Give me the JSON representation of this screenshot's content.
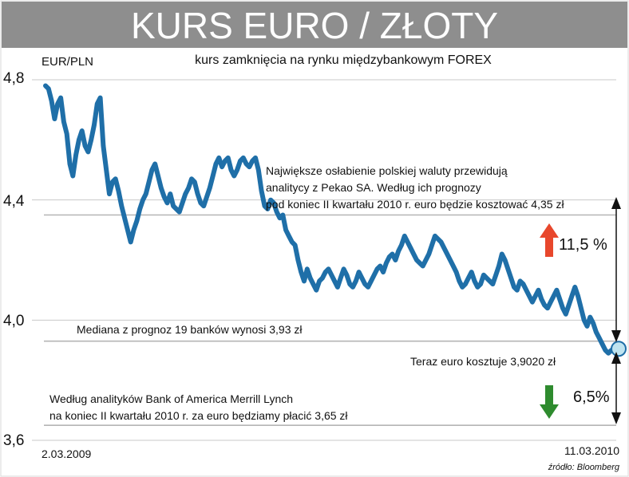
{
  "header": {
    "title": "KURS EURO / ZŁOTY",
    "subtitle": "kurs zamknięcia na rynku międzybankowym FOREX"
  },
  "chart_data": {
    "type": "line",
    "ylabel": "EUR/PLN",
    "ylim": [
      3.6,
      4.8
    ],
    "y_ticks": [
      "4,8",
      "4,4",
      "4,0",
      "3,6"
    ],
    "x_start_label": "2.03.2009",
    "x_end_label": "11.03.2010",
    "source": "źródło: Bloomberg",
    "series": [
      {
        "color": "#1f6fa8",
        "values": [
          4.78,
          4.77,
          4.73,
          4.67,
          4.72,
          4.74,
          4.66,
          4.62,
          4.52,
          4.48,
          4.55,
          4.6,
          4.63,
          4.58,
          4.56,
          4.6,
          4.65,
          4.72,
          4.74,
          4.58,
          4.5,
          4.42,
          4.46,
          4.47,
          4.43,
          4.38,
          4.34,
          4.3,
          4.26,
          4.3,
          4.33,
          4.37,
          4.4,
          4.42,
          4.46,
          4.5,
          4.52,
          4.48,
          4.44,
          4.41,
          4.39,
          4.42,
          4.38,
          4.37,
          4.36,
          4.39,
          4.42,
          4.44,
          4.47,
          4.46,
          4.42,
          4.39,
          4.38,
          4.41,
          4.44,
          4.48,
          4.52,
          4.54,
          4.51,
          4.53,
          4.54,
          4.5,
          4.48,
          4.5,
          4.53,
          4.54,
          4.52,
          4.51,
          4.53,
          4.54,
          4.5,
          4.43,
          4.38,
          4.37,
          4.4,
          4.39,
          4.36,
          4.34,
          4.35,
          4.3,
          4.28,
          4.26,
          4.25,
          4.2,
          4.16,
          4.13,
          4.17,
          4.14,
          4.12,
          4.1,
          4.13,
          4.14,
          4.16,
          4.17,
          4.15,
          4.13,
          4.11,
          4.14,
          4.17,
          4.15,
          4.12,
          4.11,
          4.13,
          4.16,
          4.14,
          4.12,
          4.11,
          4.13,
          4.15,
          4.17,
          4.18,
          4.16,
          4.19,
          4.21,
          4.22,
          4.2,
          4.23,
          4.25,
          4.28,
          4.26,
          4.24,
          4.22,
          4.2,
          4.19,
          4.18,
          4.2,
          4.22,
          4.25,
          4.28,
          4.27,
          4.26,
          4.24,
          4.22,
          4.2,
          4.18,
          4.16,
          4.13,
          4.11,
          4.12,
          4.14,
          4.16,
          4.13,
          4.11,
          4.12,
          4.15,
          4.14,
          4.13,
          4.12,
          4.15,
          4.18,
          4.22,
          4.2,
          4.17,
          4.14,
          4.11,
          4.1,
          4.13,
          4.12,
          4.1,
          4.08,
          4.06,
          4.08,
          4.1,
          4.07,
          4.05,
          4.04,
          4.06,
          4.08,
          4.1,
          4.07,
          4.04,
          4.02,
          4.05,
          4.08,
          4.11,
          4.08,
          4.04,
          4.0,
          3.98,
          4.01,
          3.99,
          3.96,
          3.94,
          3.92,
          3.9,
          3.89,
          3.9
        ]
      }
    ],
    "reference_lines": [
      {
        "value": 4.35,
        "label": "Największe osłabienie polskiej waluty przewidują analitycy z Pekao SA. Według ich prognozy pod koniec II kwartału 2010 r. euro będzie kosztować 4,35 zł"
      },
      {
        "value": 3.93,
        "label": "Mediana z prognoz 19 banków wynosi 3,93 zł"
      },
      {
        "value": 3.65,
        "label": "Według analityków Bank of America Merrill Lynch na koniec II kwartału 2010 r. za euro będziamy płacić 3,65 zł"
      }
    ],
    "current": {
      "value": 3.902,
      "label": "Teraz euro kosztuje 3,9020 zł"
    },
    "changes": {
      "up": "11,5 %",
      "down": "6,5%"
    },
    "colors": {
      "title_bg": "#8e8e8e",
      "line": "#1f6fa8",
      "grid": "#b5b5b5",
      "up_arrow": "#e8472c",
      "down_arrow": "#2e8b2e"
    }
  },
  "annotations": {
    "pekao_line1": "Największe osłabienie polskiej waluty przewidują",
    "pekao_line2": "analitycy z Pekao SA. Według ich prognozy",
    "pekao_line3": "pod koniec II kwartału 2010 r. euro będzie kosztować 4,35 zł",
    "median": "Mediana z prognoz 19 banków wynosi 3,93 zł",
    "current": "Teraz euro kosztuje 3,9020 zł",
    "boa_line1": "Według analityków Bank of America Merrill Lynch",
    "boa_line2": "na koniec II kwartału 2010 r. za euro będziamy płacić 3,65 zł"
  }
}
